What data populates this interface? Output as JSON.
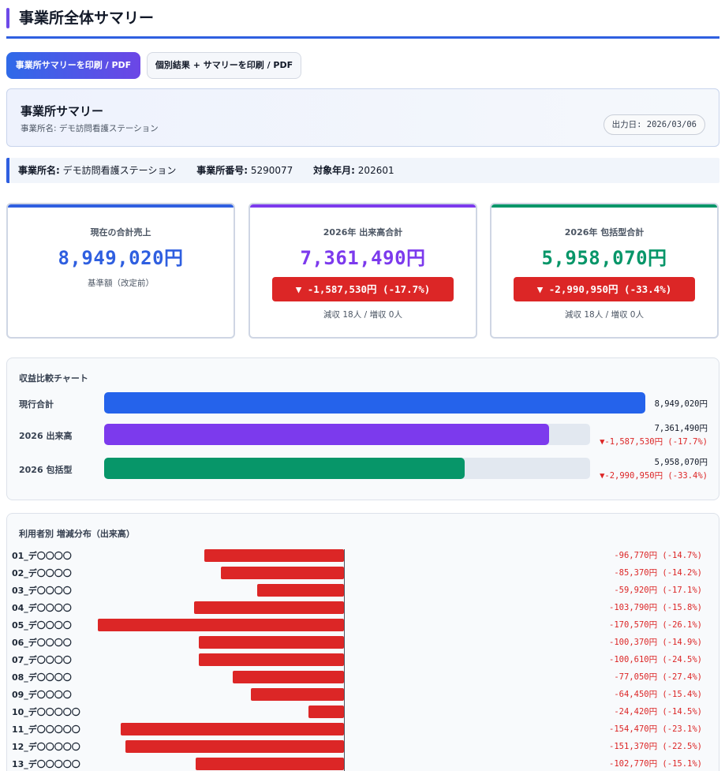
{
  "page": {
    "title": "事業所全体サマリー"
  },
  "toolbar": {
    "print_summary_label": "事業所サマリーを印刷 / PDF",
    "print_all_label": "個別結果 + サマリーを印刷 / PDF"
  },
  "summary_header": {
    "title": "事業所サマリー",
    "office_line": "事業所名: デモ訪問看護ステーション",
    "output_date": "出力日: 2026/03/06"
  },
  "info_bar": {
    "office_name_label": "事業所名:",
    "office_name": "デモ訪問看護ステーション",
    "office_number_label": "事業所番号:",
    "office_number": "5290077",
    "target_month_label": "対象年月:",
    "target_month": "202601"
  },
  "cards": [
    {
      "label": "現在の合計売上",
      "value": "8,949,020円",
      "sub": "基準額（改定前）",
      "color": "#2f5fe0"
    },
    {
      "label": "2026年 出来高合計",
      "value": "7,361,490円",
      "delta": "▼ -1,587,530円 (-17.7%)",
      "sub": "減収 18人 / 増収 0人",
      "color": "#7c3aed"
    },
    {
      "label": "2026年 包括型合計",
      "value": "5,958,070円",
      "delta": "▼ -2,990,950円 (-33.4%)",
      "sub": "減収 18人 / 増収 0人",
      "color": "#079669"
    }
  ],
  "comparison": {
    "title": "収益比較チャート",
    "max": 8949020,
    "rows": [
      {
        "label": "現行合計",
        "amount": 8949020,
        "value": "8,949,020円",
        "delta": "",
        "color": "#2563eb"
      },
      {
        "label": "2026 出来高",
        "amount": 7361490,
        "value": "7,361,490円",
        "delta": "▼-1,587,530円 (-17.7%)",
        "color": "#7c3aed"
      },
      {
        "label": "2026 包括型",
        "amount": 5958070,
        "value": "5,958,070円",
        "delta": "▼-2,990,950円 (-33.4%)",
        "color": "#079669"
      }
    ]
  },
  "distribution": {
    "title": "利用者別 増減分布（出来高）",
    "max_abs": 170570,
    "rows": [
      {
        "name": "01_デ〇〇〇〇",
        "amount": -96770,
        "value": "-96,770円 (-14.7%)"
      },
      {
        "name": "02_デ〇〇〇〇",
        "amount": -85370,
        "value": "-85,370円 (-14.2%)"
      },
      {
        "name": "03_デ〇〇〇〇",
        "amount": -59920,
        "value": "-59,920円 (-17.1%)"
      },
      {
        "name": "04_デ〇〇〇〇",
        "amount": -103790,
        "value": "-103,790円 (-15.8%)"
      },
      {
        "name": "05_デ〇〇〇〇",
        "amount": -170570,
        "value": "-170,570円 (-26.1%)"
      },
      {
        "name": "06_デ〇〇〇〇",
        "amount": -100370,
        "value": "-100,370円 (-14.9%)"
      },
      {
        "name": "07_デ〇〇〇〇",
        "amount": -100610,
        "value": "-100,610円 (-24.5%)"
      },
      {
        "name": "08_デ〇〇〇〇",
        "amount": -77050,
        "value": "-77,050円 (-27.4%)"
      },
      {
        "name": "09_デ〇〇〇〇",
        "amount": -64450,
        "value": "-64,450円 (-15.4%)"
      },
      {
        "name": "10_デ〇〇〇〇〇",
        "amount": -24420,
        "value": "-24,420円 (-14.5%)"
      },
      {
        "name": "11_デ〇〇〇〇〇",
        "amount": -154470,
        "value": "-154,470円 (-23.1%)"
      },
      {
        "name": "12_デ〇〇〇〇〇",
        "amount": -151370,
        "value": "-151,370円 (-22.5%)"
      },
      {
        "name": "13_デ〇〇〇〇〇",
        "amount": -102770,
        "value": "-102,770円 (-15.1%)"
      }
    ]
  }
}
